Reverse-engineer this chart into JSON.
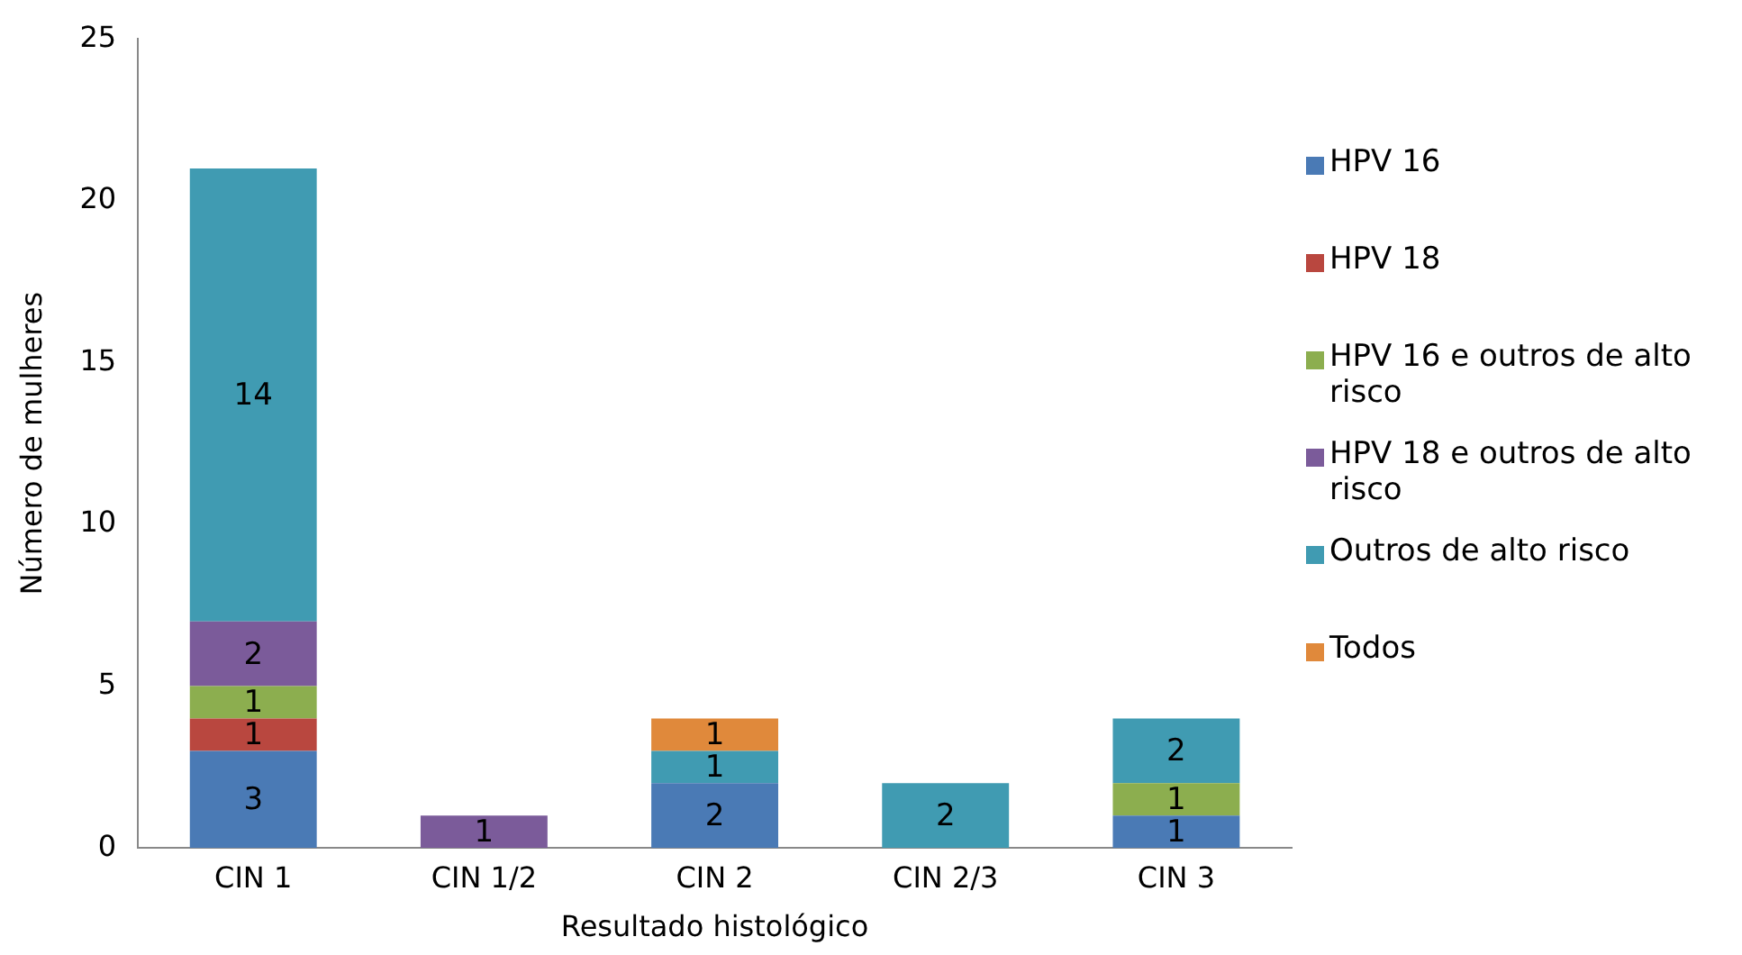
{
  "chart_data": {
    "type": "bar",
    "stacked": true,
    "xlabel": "Resultado histológico",
    "ylabel": "Número de mulheres",
    "categories": [
      "CIN 1",
      "CIN 1/2",
      "CIN 2",
      "CIN 2/3",
      "CIN 3"
    ],
    "series": [
      {
        "name": "HPV 16",
        "color": "#4a7ab5",
        "values": [
          3,
          null,
          2,
          null,
          1
        ]
      },
      {
        "name": "HPV 18",
        "color": "#b9473f",
        "values": [
          1,
          null,
          null,
          null,
          null
        ]
      },
      {
        "name": "HPV 16 e outros de alto risco",
        "color": "#8cae4f",
        "values": [
          1,
          null,
          null,
          null,
          1
        ]
      },
      {
        "name": "HPV 18 e outros de alto risco",
        "color": "#7b5b9a",
        "values": [
          2,
          1,
          null,
          null,
          null
        ]
      },
      {
        "name": "Outros de alto risco",
        "color": "#409bb2",
        "values": [
          14,
          null,
          1,
          2,
          2
        ]
      },
      {
        "name": "Todos",
        "color": "#e0893b",
        "values": [
          null,
          null,
          1,
          null,
          null
        ]
      }
    ],
    "ylim": [
      0,
      25
    ],
    "yticks": [
      0,
      5,
      10,
      15,
      20,
      25
    ],
    "grid": false,
    "legend": "right",
    "data_labels": true
  }
}
